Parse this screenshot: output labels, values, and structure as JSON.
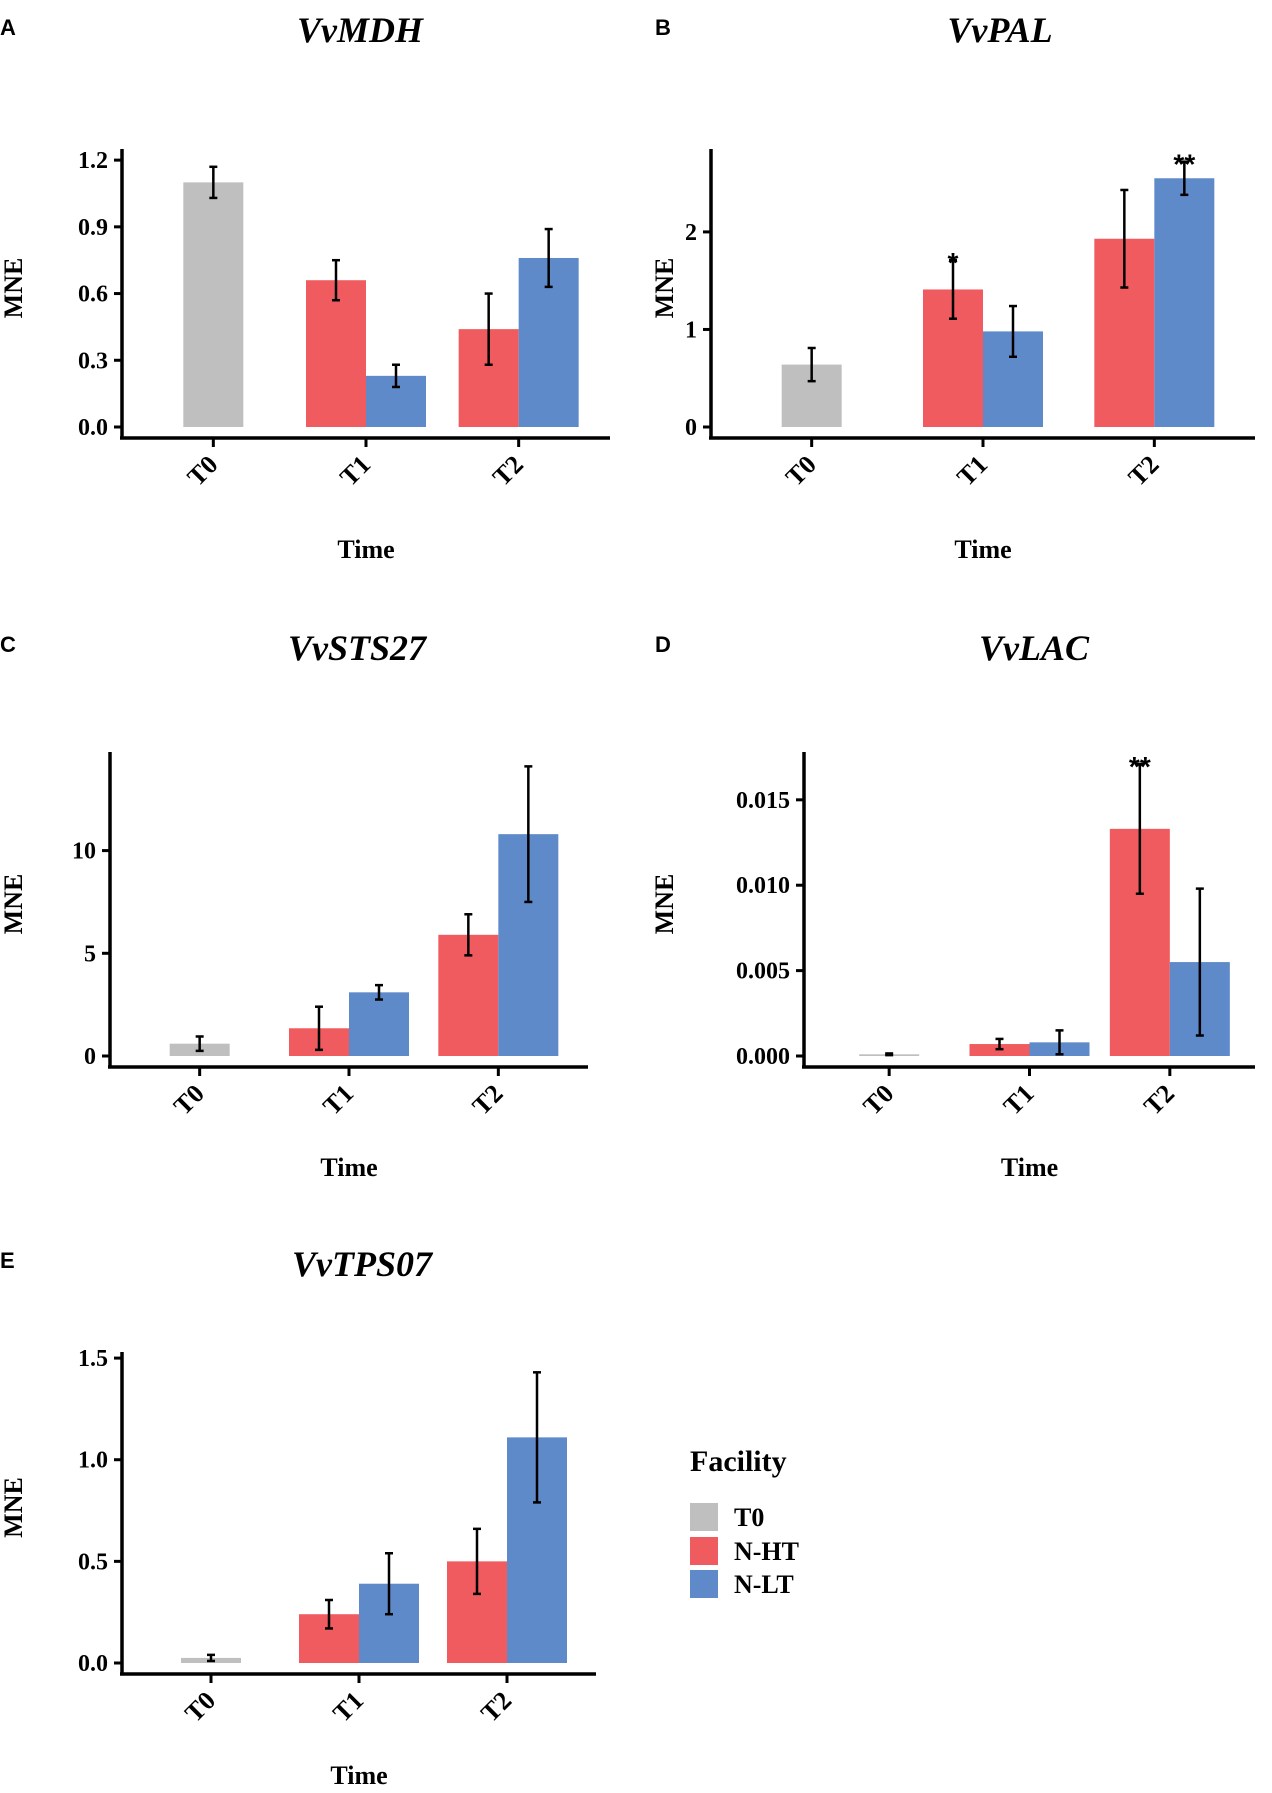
{
  "colors": {
    "T0": "#bfbfbf",
    "N-HT": "#ef5b5e",
    "N-LT": "#5f8ac9"
  },
  "legend": {
    "title": "Facility",
    "items": [
      "T0",
      "N-HT",
      "N-LT"
    ]
  },
  "chart_data": [
    {
      "panel": "A",
      "type": "bar",
      "title": "VvMDH",
      "xlabel": "Time",
      "ylabel": "MNE",
      "categories": [
        "T0",
        "T1",
        "T2"
      ],
      "ylim": [
        0,
        1.25
      ],
      "yticks": [
        0.0,
        0.3,
        0.6,
        0.9,
        1.2
      ],
      "ytick_labels": [
        "0.0",
        "0.3",
        "0.6",
        "0.9",
        "1.2"
      ],
      "bars": [
        {
          "category": "T0",
          "series": "T0",
          "value": 1.1,
          "err": 0.07,
          "sig": ""
        },
        {
          "category": "T1",
          "series": "N-HT",
          "value": 0.66,
          "err": 0.09,
          "sig": ""
        },
        {
          "category": "T1",
          "series": "N-LT",
          "value": 0.23,
          "err": 0.05,
          "sig": ""
        },
        {
          "category": "T2",
          "series": "N-HT",
          "value": 0.44,
          "err": 0.16,
          "sig": ""
        },
        {
          "category": "T2",
          "series": "N-LT",
          "value": 0.76,
          "err": 0.13,
          "sig": ""
        }
      ]
    },
    {
      "panel": "B",
      "type": "bar",
      "title": "VvPAL",
      "xlabel": "Time",
      "ylabel": "MNE",
      "categories": [
        "T0",
        "T1",
        "T2"
      ],
      "ylim": [
        0,
        2.85
      ],
      "yticks": [
        0,
        1,
        2
      ],
      "ytick_labels": [
        "0",
        "1",
        "2"
      ],
      "bars": [
        {
          "category": "T0",
          "series": "T0",
          "value": 0.64,
          "err": 0.17,
          "sig": ""
        },
        {
          "category": "T1",
          "series": "N-HT",
          "value": 1.41,
          "err": 0.3,
          "sig": "*"
        },
        {
          "category": "T1",
          "series": "N-LT",
          "value": 0.98,
          "err": 0.26,
          "sig": ""
        },
        {
          "category": "T2",
          "series": "N-HT",
          "value": 1.93,
          "err": 0.5,
          "sig": ""
        },
        {
          "category": "T2",
          "series": "N-LT",
          "value": 2.55,
          "err": 0.17,
          "sig": "**"
        }
      ]
    },
    {
      "panel": "C",
      "type": "bar",
      "title": "VvSTS27",
      "xlabel": "Time",
      "ylabel": "MNE",
      "categories": [
        "T0",
        "T1",
        "T2"
      ],
      "ylim": [
        0,
        14.8
      ],
      "yticks": [
        0,
        5,
        10
      ],
      "ytick_labels": [
        "0",
        "5",
        "10"
      ],
      "bars": [
        {
          "category": "T0",
          "series": "T0",
          "value": 0.6,
          "err": 0.35,
          "sig": ""
        },
        {
          "category": "T1",
          "series": "N-HT",
          "value": 1.35,
          "err": 1.05,
          "sig": ""
        },
        {
          "category": "T1",
          "series": "N-LT",
          "value": 3.1,
          "err": 0.35,
          "sig": ""
        },
        {
          "category": "T2",
          "series": "N-HT",
          "value": 5.9,
          "err": 1.0,
          "sig": ""
        },
        {
          "category": "T2",
          "series": "N-LT",
          "value": 10.8,
          "err": 3.3,
          "sig": ""
        }
      ]
    },
    {
      "panel": "D",
      "type": "bar",
      "title": "VvLAC",
      "xlabel": "Time",
      "ylabel": "MNE",
      "categories": [
        "T0",
        "T1",
        "T2"
      ],
      "ylim": [
        0,
        0.0178
      ],
      "yticks": [
        0,
        0.005,
        0.01,
        0.015
      ],
      "ytick_labels": [
        "0.000",
        "0.005",
        "0.010",
        "0.015"
      ],
      "bars": [
        {
          "category": "T0",
          "series": "T0",
          "value": 0.0001,
          "err": 5e-05,
          "sig": ""
        },
        {
          "category": "T1",
          "series": "N-HT",
          "value": 0.0007,
          "err": 0.0003,
          "sig": ""
        },
        {
          "category": "T1",
          "series": "N-LT",
          "value": 0.0008,
          "err": 0.0007,
          "sig": ""
        },
        {
          "category": "T2",
          "series": "N-HT",
          "value": 0.0133,
          "err": 0.0038,
          "sig": "**"
        },
        {
          "category": "T2",
          "series": "N-LT",
          "value": 0.0055,
          "err": 0.0043,
          "sig": ""
        }
      ]
    },
    {
      "panel": "E",
      "type": "bar",
      "title": "VvTPS07",
      "xlabel": "Time",
      "ylabel": "MNE",
      "categories": [
        "T0",
        "T1",
        "T2"
      ],
      "ylim": [
        0,
        1.53
      ],
      "yticks": [
        0.0,
        0.5,
        1.0,
        1.5
      ],
      "ytick_labels": [
        "0.0",
        "0.5",
        "1.0",
        "1.5"
      ],
      "bars": [
        {
          "category": "T0",
          "series": "T0",
          "value": 0.025,
          "err": 0.015,
          "sig": ""
        },
        {
          "category": "T1",
          "series": "N-HT",
          "value": 0.24,
          "err": 0.07,
          "sig": ""
        },
        {
          "category": "T1",
          "series": "N-LT",
          "value": 0.39,
          "err": 0.15,
          "sig": ""
        },
        {
          "category": "T2",
          "series": "N-HT",
          "value": 0.5,
          "err": 0.16,
          "sig": ""
        },
        {
          "category": "T2",
          "series": "N-LT",
          "value": 1.11,
          "err": 0.32,
          "sig": ""
        }
      ]
    }
  ]
}
